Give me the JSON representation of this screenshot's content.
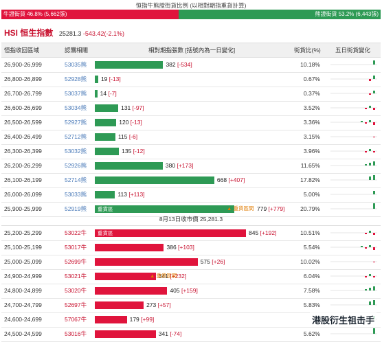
{
  "header": {
    "title": "恒指牛熊證街貨比例 (以相對期指重貨計算)",
    "bull_label": "牛證街貨 46.8% (5,662張)",
    "bear_label": "熊證街貨 53.2% (6,443張)",
    "bull_ratio": 0.468
  },
  "index": {
    "name": "HSI 恒生指數",
    "value": "25281.3",
    "change": "-543.42(-2.1%)"
  },
  "columns": {
    "range": "恒指收回區域",
    "code": "認購相關",
    "ratio": "相對期指張數 [括號內為一日變化]",
    "street": "街貨比(%)",
    "trend": "五日街貨變化"
  },
  "bear_rows": [
    {
      "range": "26,900-26,999",
      "code": "53035熊",
      "value": "382",
      "delta": "[-534]",
      "pct": "10.18%",
      "v": 382
    },
    {
      "range": "26,800-26,899",
      "code": "52928熊",
      "value": "19",
      "delta": "[-13]",
      "pct": "0.67%",
      "v": 19
    },
    {
      "range": "26,700-26,799",
      "code": "53037熊",
      "value": "14",
      "delta": "[-7]",
      "pct": "0.37%",
      "v": 14
    },
    {
      "range": "26,600-26,699",
      "code": "53034熊",
      "value": "131",
      "delta": "[-97]",
      "pct": "3.52%",
      "v": 131
    },
    {
      "range": "26,500-26,599",
      "code": "52927熊",
      "value": "120",
      "delta": "[-13]",
      "pct": "3.36%",
      "v": 120
    },
    {
      "range": "26,400-26,499",
      "code": "52712熊",
      "value": "115",
      "delta": "[-6]",
      "pct": "3.15%",
      "v": 115
    },
    {
      "range": "26,300-26,399",
      "code": "53032熊",
      "value": "135",
      "delta": "[-12]",
      "pct": "3.96%",
      "v": 135
    },
    {
      "range": "26,200-26,299",
      "code": "52926熊",
      "value": "380",
      "delta": "[+173]",
      "pct": "11.65%",
      "v": 380
    },
    {
      "range": "26,100-26,199",
      "code": "52714熊",
      "value": "668",
      "delta": "[+407]",
      "pct": "17.82%",
      "v": 668
    },
    {
      "range": "26,000-26,099",
      "code": "53033熊",
      "value": "113",
      "delta": "[+113]",
      "pct": "5.00%",
      "v": 113
    },
    {
      "range": "25,900-25,999",
      "code": "52919熊",
      "value": "779",
      "delta": "[+779]",
      "pct": "20.79%",
      "v": 779,
      "tag": "重貨區",
      "note": "▲ 重貨區間"
    }
  ],
  "mid_label": "8月13日收市價 25,281.3",
  "bull_rows": [
    {
      "range": "25,200-25,299",
      "code": "53022牛",
      "value": "845",
      "delta": "[+192]",
      "pct": "10.51%",
      "v": 845,
      "tag": "重貨區"
    },
    {
      "range": "25,100-25,199",
      "code": "53017牛",
      "value": "386",
      "delta": "[+103]",
      "pct": "5.54%",
      "v": 386
    },
    {
      "range": "25,000-25,099",
      "code": "52699牛",
      "value": "575",
      "delta": "[+26]",
      "pct": "10.02%",
      "v": 575
    },
    {
      "range": "24,900-24,999",
      "code": "53021牛",
      "value": "341",
      "delta": "[+232]",
      "pct": "6.04%",
      "v": 341,
      "note": "▲ 重貨區間"
    },
    {
      "range": "24,800-24,899",
      "code": "53020牛",
      "value": "405",
      "delta": "[+159]",
      "pct": "7.58%",
      "v": 405
    },
    {
      "range": "24,700-24,799",
      "code": "52697牛",
      "value": "273",
      "delta": "[+57]",
      "pct": "5.83%",
      "v": 273
    },
    {
      "range": "24,600-24,699",
      "code": "57067牛",
      "value": "179",
      "delta": "[+99]",
      "pct": "",
      "v": 179
    },
    {
      "range": "24,500-24,599",
      "code": "53016牛",
      "value": "341",
      "delta": "[-74]",
      "pct": "5.62%",
      "v": 341
    }
  ],
  "watermark": "港股衍生祖击手",
  "colors": {
    "bull": "#e0143c",
    "bear": "#2e9a55",
    "accent": "#c8102e"
  }
}
